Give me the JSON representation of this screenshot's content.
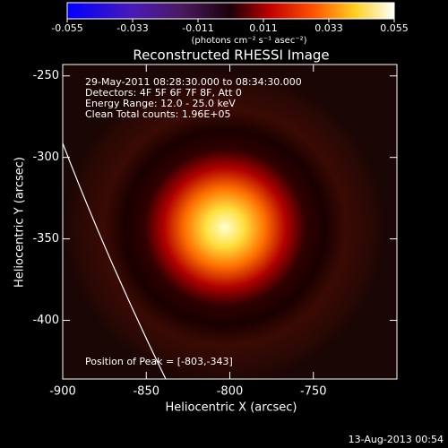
{
  "chart_data": {
    "type": "image",
    "title": "Reconstructed RHESSI Image",
    "colorbar_label": "(photons cm⁻² s⁻¹ asec⁻²)",
    "clim": [
      -0.055,
      0.055
    ],
    "cticks": [
      -0.055,
      -0.033,
      -0.011,
      0.011,
      0.033,
      0.055
    ],
    "x_label": "Heliocentric X (arcsec)",
    "y_label": "Heliocentric Y (arcsec)",
    "xlim": [
      -900,
      -700
    ],
    "ylim": [
      -436,
      -243
    ],
    "xticks": [
      -900,
      -850,
      -800,
      -750
    ],
    "yticks": [
      -250,
      -300,
      -350,
      -400
    ],
    "annotations": [
      "29-May-2011 08:28:30.000 to 08:34:30.000",
      "Detectors: 4F 5F 6F 7F 8F, Att 0",
      "Energy Range: 12.0 - 25.0 keV",
      "Clean    Total counts: 1.96E+05"
    ],
    "peak_label": "Position of Peak = [-803,-343]",
    "footer": "13-Aug-2013 00:54"
  }
}
